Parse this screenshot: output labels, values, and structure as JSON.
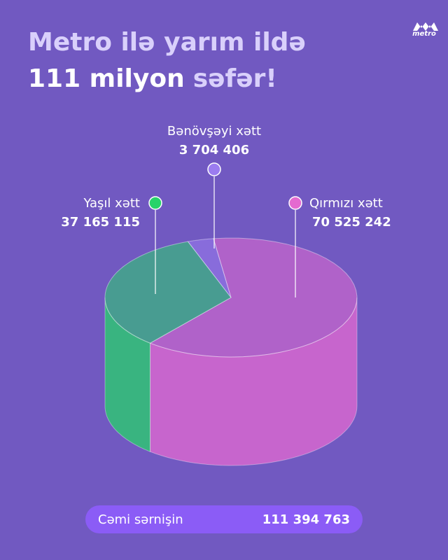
{
  "logo": "metro",
  "title": [
    "Metro ilə yarım ildə",
    "111 milyon",
    "səfər!"
  ],
  "chart_data": {
    "type": "pie",
    "categories": [
      "Qırmızı xətt",
      "Yaşıl xətt",
      "Bənövşəyi xətt"
    ],
    "values": [
      70525242,
      37165115,
      3704406
    ],
    "value_labels": [
      "70 525 242",
      "37 165 115",
      "3 704 406"
    ],
    "colors": [
      "#e46ad0",
      "#27d36a",
      "#9b7cf0"
    ]
  },
  "total_label": "Cəmi sərnişin",
  "total": "111 394 763"
}
